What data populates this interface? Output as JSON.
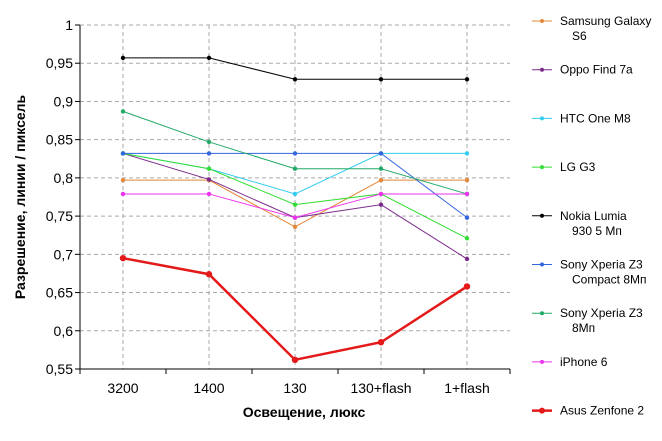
{
  "chart_data": {
    "type": "line",
    "xlabel": "Освещение,  люкс",
    "ylabel": "Разрешение,  линии / пиксель",
    "categories": [
      "3200",
      "1400",
      "130",
      "130+flash",
      "1+flash"
    ],
    "ylim": [
      0.55,
      1
    ],
    "yticks": [
      "0,55",
      "0,6",
      "0,65",
      "0,7",
      "0,75",
      "0,8",
      "0,85",
      "0,9",
      "0,95",
      "1"
    ],
    "grid": true,
    "legend_position": "right",
    "series": [
      {
        "name": "Samsung Galaxy S6",
        "color": "#E5883A",
        "values": [
          0.797,
          0.797,
          0.736,
          0.797,
          0.797
        ]
      },
      {
        "name": "Oppo Find 7a",
        "color": "#7B2A8A",
        "values": [
          0.832,
          0.798,
          0.748,
          0.765,
          0.694
        ]
      },
      {
        "name": "HTC One M8",
        "color": "#33CCEE",
        "values": [
          0.832,
          0.812,
          0.779,
          0.832,
          0.832
        ]
      },
      {
        "name": "LG G3",
        "color": "#33DD33",
        "values": [
          0.832,
          0.812,
          0.765,
          0.779,
          0.721
        ]
      },
      {
        "name": "Nokia Lumia 930 5 Мп",
        "color": "#000000",
        "values": [
          0.957,
          0.957,
          0.929,
          0.929,
          0.929
        ]
      },
      {
        "name": "Sony Xperia Z3 Compact 8Мп",
        "color": "#3366DD",
        "values": [
          0.832,
          0.832,
          0.832,
          0.832,
          0.748
        ]
      },
      {
        "name": "Sony Xperia Z3 8Мп",
        "color": "#22AA66",
        "values": [
          0.887,
          0.847,
          0.812,
          0.812,
          0.779
        ]
      },
      {
        "name": "iPhone 6",
        "color": "#EE33EE",
        "values": [
          0.779,
          0.779,
          0.748,
          0.779,
          0.779
        ]
      },
      {
        "name": "Asus Zenfone 2",
        "color": "#E41A1A",
        "values": [
          0.695,
          0.674,
          0.562,
          0.585,
          0.658
        ],
        "bold": true
      }
    ]
  }
}
